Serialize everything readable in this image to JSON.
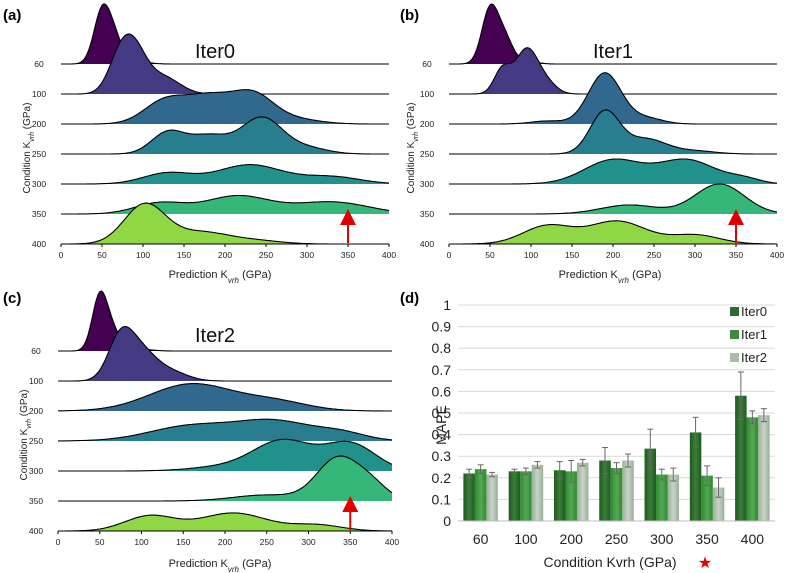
{
  "panels": [
    {
      "label": "(a)",
      "title": "Iter0",
      "xlabel_prefix": "Prediction K",
      "xlabel_sub": "vrh",
      "xlabel_suffix": " (GPa)",
      "ylabel_prefix": "Condition K",
      "ylabel_sub": "vrh",
      "ylabel_suffix": " (GPa)",
      "arrow_at": 350
    },
    {
      "label": "(b)",
      "title": "Iter1",
      "xlabel_prefix": "Prediction K",
      "xlabel_sub": "vrh",
      "xlabel_suffix": " (GPa)",
      "ylabel_prefix": "Condition K",
      "ylabel_sub": "vrh",
      "ylabel_suffix": " (GPa)",
      "arrow_at": 350
    },
    {
      "label": "(c)",
      "title": "Iter2",
      "xlabel_prefix": "Prediction K",
      "xlabel_sub": "vrh",
      "xlabel_suffix": " (GPa)",
      "ylabel_prefix": "Condition K",
      "ylabel_sub": "vrh",
      "ylabel_suffix": " (GPa)",
      "arrow_at": 350
    },
    {
      "label": "(d)"
    }
  ],
  "chart_data": [
    {
      "type": "area",
      "title": "Iter0",
      "xlabel": "Prediction Kvrh (GPa)",
      "ylabel": "Condition Kvrh (GPa)",
      "xlim": [
        0,
        400
      ],
      "xticks": [
        0,
        50,
        100,
        150,
        200,
        250,
        300,
        350,
        400
      ],
      "conditions": [
        60,
        100,
        200,
        250,
        300,
        350,
        400
      ],
      "colors": [
        "#440154",
        "#443a83",
        "#31688e",
        "#287d8e",
        "#21918c",
        "#35b779",
        "#8fd744"
      ],
      "series": [
        {
          "name": "60",
          "peaks": [
            [
              50,
              1.0,
              10
            ],
            [
              65,
              0.45,
              10
            ],
            [
              90,
              0.05,
              15
            ]
          ]
        },
        {
          "name": "100",
          "peaks": [
            [
              70,
              0.45,
              14
            ],
            [
              88,
              0.8,
              16
            ],
            [
              125,
              0.3,
              20
            ]
          ]
        },
        {
          "name": "200",
          "peaks": [
            [
              125,
              0.35,
              25
            ],
            [
              180,
              0.45,
              30
            ],
            [
              235,
              0.45,
              25
            ],
            [
              285,
              0.08,
              30
            ]
          ]
        },
        {
          "name": "250",
          "peaks": [
            [
              130,
              0.35,
              20
            ],
            [
              180,
              0.3,
              25
            ],
            [
              245,
              0.6,
              25
            ],
            [
              300,
              0.1,
              25
            ]
          ]
        },
        {
          "name": "300",
          "peaks": [
            [
              130,
              0.18,
              30
            ],
            [
              230,
              0.32,
              40
            ],
            [
              330,
              0.12,
              35
            ]
          ]
        },
        {
          "name": "350",
          "peaks": [
            [
              120,
              0.18,
              30
            ],
            [
              215,
              0.3,
              40
            ],
            [
              330,
              0.2,
              45
            ]
          ]
        },
        {
          "name": "400",
          "peaks": [
            [
              102,
              0.65,
              25
            ],
            [
              170,
              0.2,
              35
            ],
            [
              240,
              0.05,
              30
            ]
          ]
        }
      ]
    },
    {
      "type": "area",
      "title": "Iter1",
      "xlabel": "Prediction Kvrh (GPa)",
      "ylabel": "Condition Kvrh (GPa)",
      "xlim": [
        0,
        400
      ],
      "xticks": [
        0,
        50,
        100,
        150,
        200,
        250,
        300,
        350,
        400
      ],
      "conditions": [
        60,
        100,
        200,
        250,
        300,
        350,
        400
      ],
      "colors": [
        "#440154",
        "#443a83",
        "#31688e",
        "#287d8e",
        "#21918c",
        "#35b779",
        "#8fd744"
      ],
      "series": [
        {
          "name": "60",
          "peaks": [
            [
              50,
              1.0,
              10
            ],
            [
              68,
              0.45,
              10
            ],
            [
              95,
              0.05,
              12
            ]
          ]
        },
        {
          "name": "100",
          "peaks": [
            [
              65,
              0.4,
              10
            ],
            [
              95,
              0.75,
              14
            ],
            [
              120,
              0.15,
              12
            ]
          ]
        },
        {
          "name": "200",
          "peaks": [
            [
              120,
              0.05,
              20
            ],
            [
              190,
              0.85,
              20
            ],
            [
              240,
              0.1,
              20
            ]
          ]
        },
        {
          "name": "250",
          "peaks": [
            [
              190,
              0.7,
              18
            ],
            [
              240,
              0.25,
              25
            ],
            [
              300,
              0.05,
              25
            ]
          ]
        },
        {
          "name": "300",
          "peaks": [
            [
              200,
              0.4,
              35
            ],
            [
              290,
              0.4,
              35
            ],
            [
              360,
              0.08,
              20
            ]
          ]
        },
        {
          "name": "350",
          "peaks": [
            [
              220,
              0.15,
              35
            ],
            [
              330,
              0.5,
              30
            ]
          ]
        },
        {
          "name": "400",
          "peaks": [
            [
              120,
              0.3,
              30
            ],
            [
              205,
              0.38,
              35
            ],
            [
              300,
              0.15,
              30
            ]
          ]
        }
      ]
    },
    {
      "type": "area",
      "title": "Iter2",
      "xlabel": "Prediction Kvrh (GPa)",
      "ylabel": "Condition Kvrh (GPa)",
      "xlim": [
        0,
        400
      ],
      "xticks": [
        0,
        50,
        100,
        150,
        200,
        250,
        300,
        350,
        400
      ],
      "conditions": [
        60,
        100,
        200,
        250,
        300,
        350,
        400
      ],
      "colors": [
        "#440154",
        "#443a83",
        "#31688e",
        "#287d8e",
        "#21918c",
        "#35b779",
        "#8fd744"
      ],
      "series": [
        {
          "name": "60",
          "peaks": [
            [
              50,
              1.0,
              9
            ],
            [
              65,
              0.35,
              10
            ],
            [
              95,
              0.04,
              15
            ]
          ]
        },
        {
          "name": "100",
          "peaks": [
            [
              75,
              0.7,
              15
            ],
            [
              100,
              0.45,
              18
            ],
            [
              135,
              0.15,
              20
            ]
          ]
        },
        {
          "name": "200",
          "peaks": [
            [
              160,
              0.45,
              50
            ],
            [
              260,
              0.15,
              40
            ]
          ]
        },
        {
          "name": "250",
          "peaks": [
            [
              160,
              0.25,
              50
            ],
            [
              260,
              0.32,
              45
            ],
            [
              340,
              0.12,
              30
            ]
          ]
        },
        {
          "name": "300",
          "peaks": [
            [
              200,
              0.07,
              40
            ],
            [
              270,
              0.5,
              35
            ],
            [
              350,
              0.45,
              30
            ]
          ]
        },
        {
          "name": "350",
          "peaks": [
            [
              250,
              0.1,
              40
            ],
            [
              335,
              0.7,
              25
            ],
            [
              375,
              0.25,
              20
            ]
          ]
        },
        {
          "name": "400",
          "peaks": [
            [
              110,
              0.25,
              30
            ],
            [
              210,
              0.3,
              40
            ],
            [
              310,
              0.1,
              30
            ]
          ]
        }
      ]
    },
    {
      "type": "bar",
      "title": "",
      "xlabel": "Condition Kvrh (GPa)",
      "xlabel_marker": "★",
      "ylabel": "MAPE",
      "ylim": [
        0,
        1
      ],
      "yticks": [
        "0",
        "0.1",
        "0.2",
        "0.3",
        "0.4",
        "0.5",
        "0.6",
        "0.7",
        "0.8",
        "0.9",
        "1"
      ],
      "categories": [
        "60",
        "100",
        "200",
        "250",
        "300",
        "350",
        "400"
      ],
      "series": [
        {
          "name": "Iter0",
          "color": "#2e6b2e",
          "values": [
            0.22,
            0.23,
            0.235,
            0.28,
            0.335,
            0.41,
            0.58
          ],
          "errors": [
            0.02,
            0.01,
            0.04,
            0.06,
            0.09,
            0.07,
            0.11
          ]
        },
        {
          "name": "Iter1",
          "color": "#3d8b3d",
          "values": [
            0.24,
            0.23,
            0.23,
            0.245,
            0.215,
            0.21,
            0.48
          ],
          "errors": [
            0.02,
            0.015,
            0.05,
            0.025,
            0.025,
            0.045,
            0.03
          ]
        },
        {
          "name": "Iter2",
          "color": "#a8bca8",
          "values": [
            0.215,
            0.26,
            0.27,
            0.28,
            0.215,
            0.155,
            0.49
          ],
          "errors": [
            0.01,
            0.015,
            0.015,
            0.03,
            0.03,
            0.045,
            0.03
          ]
        }
      ]
    }
  ]
}
